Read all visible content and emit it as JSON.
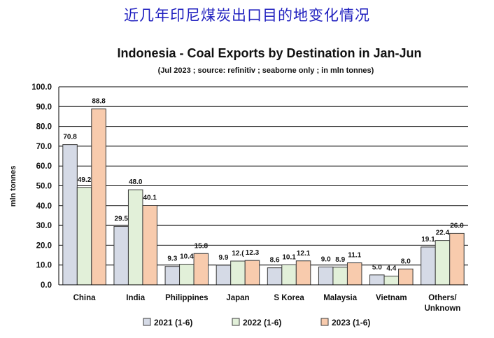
{
  "header": {
    "cn_title": "近几年印尼煤炭出口目的地变化情况"
  },
  "chart_data": {
    "type": "bar",
    "title": "Indonesia - Coal Exports by Destination in Jan-Jun",
    "subtitle": "(Jul 2023 ; source: refinitiv ; seaborne only ; in mln tonnes)",
    "xlabel": "",
    "ylabel": "mln tonnes",
    "ylim": [
      0,
      100
    ],
    "yticks": [
      "0.0",
      "10.0",
      "20.0",
      "30.0",
      "40.0",
      "50.0",
      "60.0",
      "70.0",
      "80.0",
      "90.0",
      "100.0"
    ],
    "grid": true,
    "legend_position": "bottom",
    "categories": [
      "China",
      "India",
      "Philippines",
      "Japan",
      "S Korea",
      "Malaysia",
      "Vietnam",
      "Others/ Unknown"
    ],
    "series": [
      {
        "name": "2021 (1-6)",
        "color": "#d5dae6",
        "values": [
          70.8,
          29.5,
          9.3,
          9.9,
          8.6,
          9.0,
          5.0,
          19.1
        ]
      },
      {
        "name": "2022 (1-6)",
        "color": "#e2f0d9",
        "values": [
          49.2,
          48.0,
          10.4,
          12.0,
          10.1,
          8.9,
          4.4,
          22.4
        ]
      },
      {
        "name": "2023 (1-6)",
        "color": "#f8cbad",
        "values": [
          88.8,
          40.1,
          15.8,
          12.3,
          12.1,
          11.1,
          8.0,
          26.0
        ]
      }
    ],
    "data_labels": [
      [
        "70.8",
        "29.5",
        "9.3",
        "9.9",
        "8.6",
        "9.0",
        "5.0",
        "19.1"
      ],
      [
        "49.2",
        "48.0",
        "10.4",
        "12.(",
        "10.1",
        "8.9",
        "4.4",
        "22.4"
      ],
      [
        "88.8",
        "40.1",
        "15.8",
        "12.3",
        "12.1",
        "11.1",
        "8.0",
        "26.0"
      ]
    ]
  }
}
